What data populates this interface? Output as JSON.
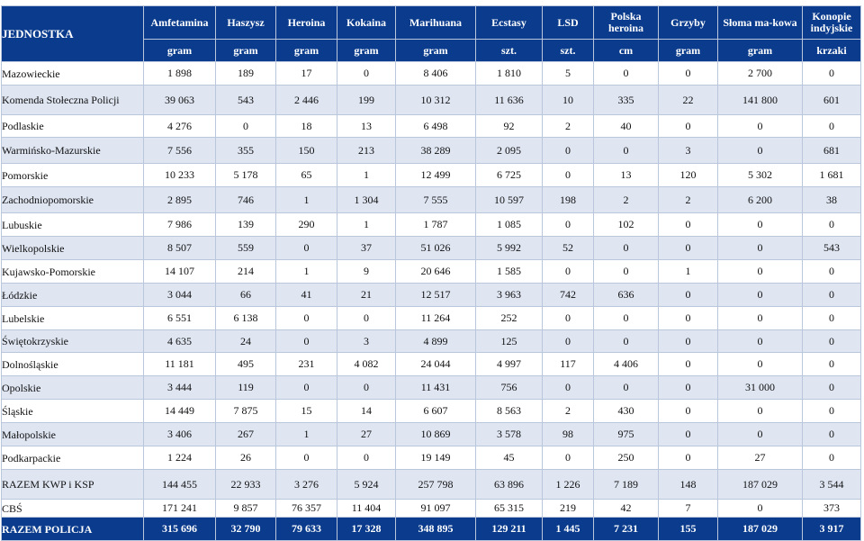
{
  "header": {
    "unit_label": "JEDNOSTKA",
    "columns": [
      {
        "name": "Amfetamina",
        "unit": "gram"
      },
      {
        "name": "Haszysz",
        "unit": "gram"
      },
      {
        "name": "Heroina",
        "unit": "gram"
      },
      {
        "name": "Kokaina",
        "unit": "gram"
      },
      {
        "name": "Marihuana",
        "unit": "gram"
      },
      {
        "name": "Ecstasy",
        "unit": "szt."
      },
      {
        "name": "LSD",
        "unit": "szt."
      },
      {
        "name": "Polska heroina",
        "unit": "cm"
      },
      {
        "name": "Grzyby",
        "unit": "gram"
      },
      {
        "name": "Słoma ma-kowa",
        "unit": "gram"
      },
      {
        "name": "Konopie indyjskie",
        "unit": "krzaki"
      }
    ]
  },
  "rows": [
    {
      "name": "Mazowieckie",
      "values": [
        "1 898",
        "189",
        "17",
        "0",
        "8 406",
        "1 810",
        "5",
        "0",
        "0",
        "2 700",
        "0"
      ]
    },
    {
      "name": "Komenda Stołeczna Policji",
      "values": [
        "39 063",
        "543",
        "2 446",
        "199",
        "10 312",
        "11 636",
        "10",
        "335",
        "22",
        "141 800",
        "601"
      ]
    },
    {
      "name": "Podlaskie",
      "values": [
        "4 276",
        "0",
        "18",
        "13",
        "6 498",
        "92",
        "2",
        "40",
        "0",
        "0",
        "0"
      ]
    },
    {
      "name": "Warmińsko-Mazurskie",
      "values": [
        "7 556",
        "355",
        "150",
        "213",
        "38 289",
        "2 095",
        "0",
        "0",
        "3",
        "0",
        "681"
      ]
    },
    {
      "name": "Pomorskie",
      "values": [
        "10 233",
        "5 178",
        "65",
        "1",
        "12 499",
        "6 725",
        "0",
        "13",
        "120",
        "5 302",
        "1 681"
      ]
    },
    {
      "name": "Zachodniopomorskie",
      "values": [
        "2 895",
        "746",
        "1",
        "1 304",
        "7 555",
        "10 597",
        "198",
        "2",
        "2",
        "6 200",
        "38"
      ]
    },
    {
      "name": "Lubuskie",
      "values": [
        "7 986",
        "139",
        "290",
        "1",
        "1 787",
        "1 085",
        "0",
        "102",
        "0",
        "0",
        "0"
      ]
    },
    {
      "name": "Wielkopolskie",
      "values": [
        "8 507",
        "559",
        "0",
        "37",
        "51 026",
        "5 992",
        "52",
        "0",
        "0",
        "0",
        "543"
      ]
    },
    {
      "name": "Kujawsko-Pomorskie",
      "values": [
        "14 107",
        "214",
        "1",
        "9",
        "20 646",
        "1 585",
        "0",
        "0",
        "1",
        "0",
        "0"
      ]
    },
    {
      "name": "Łódzkie",
      "values": [
        "3 044",
        "66",
        "41",
        "21",
        "12 517",
        "3 963",
        "742",
        "636",
        "0",
        "0",
        "0"
      ]
    },
    {
      "name": "Lubelskie",
      "values": [
        "6 551",
        "6 138",
        "0",
        "0",
        "11 264",
        "252",
        "0",
        "0",
        "0",
        "0",
        "0"
      ]
    },
    {
      "name": "Świętokrzyskie",
      "values": [
        "4 635",
        "24",
        "0",
        "3",
        "4 899",
        "125",
        "0",
        "0",
        "0",
        "0",
        "0"
      ]
    },
    {
      "name": "Dolnośląskie",
      "values": [
        "11 181",
        "495",
        "231",
        "4 082",
        "24 044",
        "4 997",
        "117",
        "4 406",
        "0",
        "0",
        "0"
      ]
    },
    {
      "name": "Opolskie",
      "values": [
        "3 444",
        "119",
        "0",
        "0",
        "11 431",
        "756",
        "0",
        "0",
        "0",
        "31 000",
        "0"
      ]
    },
    {
      "name": "Śląskie",
      "values": [
        "14 449",
        "7 875",
        "15",
        "14",
        "6 607",
        "8 563",
        "2",
        "430",
        "0",
        "0",
        "0"
      ]
    },
    {
      "name": "Małopolskie",
      "values": [
        "3 406",
        "267",
        "1",
        "27",
        "10 869",
        "3 578",
        "98",
        "975",
        "0",
        "0",
        "0"
      ]
    },
    {
      "name": "Podkarpackie",
      "values": [
        "1 224",
        "26",
        "0",
        "0",
        "19 149",
        "45",
        "0",
        "250",
        "0",
        "27",
        "0"
      ]
    }
  ],
  "sum_row": {
    "name": "RAZEM KWP i KSP",
    "values": [
      "144 455",
      "22 933",
      "3 276",
      "5 924",
      "257 798",
      "63 896",
      "1 226",
      "7 189",
      "148",
      "187 029",
      "3 544"
    ]
  },
  "cbs_row": {
    "name": "CBŚ",
    "values": [
      "171 241",
      "9 857",
      "76 357",
      "11 404",
      "91 097",
      "65 315",
      "219",
      "42",
      "7",
      "0",
      "373"
    ]
  },
  "total_row": {
    "name": "RAZEM POLICJA",
    "values": [
      "315 696",
      "32 790",
      "79 633",
      "17 328",
      "348 895",
      "129 211",
      "1 445",
      "7 231",
      "155",
      "187 029",
      "3 917"
    ]
  }
}
